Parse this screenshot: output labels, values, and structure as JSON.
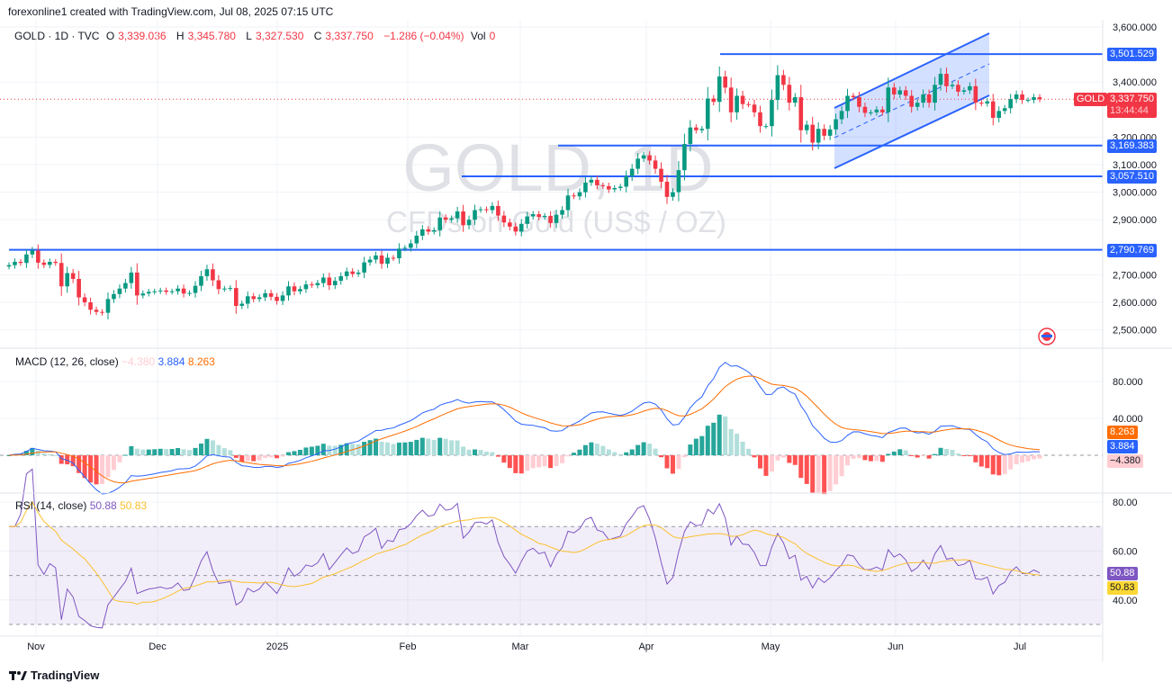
{
  "header": {
    "credit": "forexonline1 created with TradingView.com, Jul 08, 2025 07:15 UTC",
    "symbol": "GOLD · 1D · TVC",
    "open_label": "O",
    "open": "3,339.036",
    "high_label": "H",
    "high": "3,345.780",
    "low_label": "L",
    "low": "3,327.530",
    "close_label": "C",
    "close": "3,337.750",
    "change": "−1.286 (−0.04%)",
    "vol_label": "Vol",
    "vol": "0"
  },
  "watermark": {
    "title": "GOLD, 1D",
    "subtitle": "CFDs on Gold (US$ / OZ)"
  },
  "price_axis": {
    "ticks": [
      "3,600.000",
      "3,400.000",
      "3,200.000",
      "3,100.000",
      "3,000.000",
      "2,900.000",
      "2,700.000",
      "2,600.000",
      "2,500.000"
    ],
    "tick_values": [
      3600,
      3400,
      3200,
      3100,
      3000,
      2900,
      2700,
      2600,
      2500
    ],
    "levels": [
      {
        "value": 3501.529,
        "label": "3,501.529"
      },
      {
        "value": 3169.383,
        "label": "3,169.383"
      },
      {
        "value": 3057.51,
        "label": "3,057.510"
      },
      {
        "value": 2790.769,
        "label": "2,790.769"
      }
    ],
    "current": {
      "symbol": "GOLD",
      "price": "3,337.750",
      "value": 3337.75,
      "countdown": "13:44:44"
    }
  },
  "macd": {
    "title": "MACD (12, 26, close)",
    "hist_value": "−4.380",
    "macd_value": "3.884",
    "signal_value": "8.263",
    "ticks": [
      "80.000",
      "40.000"
    ],
    "tick_values": [
      80,
      40
    ]
  },
  "rsi": {
    "title": "RSI (14, close)",
    "rsi_value": "50.88",
    "ma_value": "50.83",
    "ticks": [
      "80.00",
      "60.00",
      "40.00"
    ],
    "tick_values": [
      80,
      60,
      40
    ],
    "bands": [
      70,
      50,
      30
    ]
  },
  "time_axis": [
    "Nov",
    "Dec",
    "2025",
    "Feb",
    "Mar",
    "Apr",
    "May",
    "Jun",
    "Jul"
  ],
  "colors": {
    "up": "#089981",
    "down": "#f23645",
    "level": "#2962ff",
    "macd": "#2962ff",
    "signal": "#ff6d00",
    "rsi": "#7e57c2",
    "rsi_ma": "#fbc02d"
  },
  "footer": {
    "brand": "TradingView"
  },
  "chart_data": {
    "type": "candlestick",
    "title": "GOLD · 1D · TVC",
    "ylim": [
      2450,
      3620
    ],
    "grid": true,
    "closes": [
      2735,
      2747,
      2743,
      2774,
      2788,
      2744,
      2736,
      2747,
      2743,
      2658,
      2706,
      2685,
      2618,
      2600,
      2573,
      2565,
      2562,
      2612,
      2630,
      2650,
      2670,
      2708,
      2625,
      2632,
      2638,
      2640,
      2643,
      2638,
      2640,
      2650,
      2632,
      2634,
      2660,
      2695,
      2720,
      2680,
      2648,
      2650,
      2652,
      2587,
      2595,
      2622,
      2612,
      2618,
      2633,
      2620,
      2605,
      2625,
      2658,
      2640,
      2648,
      2665,
      2662,
      2670,
      2690,
      2662,
      2678,
      2695,
      2712,
      2703,
      2708,
      2745,
      2755,
      2770,
      2740,
      2762,
      2760,
      2795,
      2798,
      2814,
      2842,
      2865,
      2857,
      2862,
      2908,
      2900,
      2905,
      2930,
      2880,
      2900,
      2935,
      2938,
      2935,
      2950,
      2915,
      2890,
      2875,
      2857,
      2885,
      2912,
      2920,
      2910,
      2914,
      2888,
      2918,
      2935,
      2988,
      2985,
      3000,
      3035,
      3045,
      3025,
      3022,
      3010,
      3015,
      3020,
      3058,
      3085,
      3122,
      3134,
      3115,
      3085,
      3038,
      2983,
      3000,
      3080,
      3175,
      3235,
      3225,
      3230,
      3340,
      3328,
      3420,
      3380,
      3290,
      3350,
      3320,
      3318,
      3290,
      3240,
      3240,
      3335,
      3425,
      3390,
      3325,
      3345,
      3225,
      3245,
      3180,
      3230,
      3205,
      3228,
      3265,
      3295,
      3350,
      3345,
      3310,
      3288,
      3290,
      3300,
      3290,
      3380,
      3355,
      3370,
      3350,
      3310,
      3325,
      3355,
      3325,
      3390,
      3430,
      3385,
      3390,
      3365,
      3370,
      3385,
      3325,
      3322,
      3330,
      3270,
      3295,
      3305,
      3338,
      3355,
      3335,
      3335,
      3345,
      3337.75
    ]
  }
}
